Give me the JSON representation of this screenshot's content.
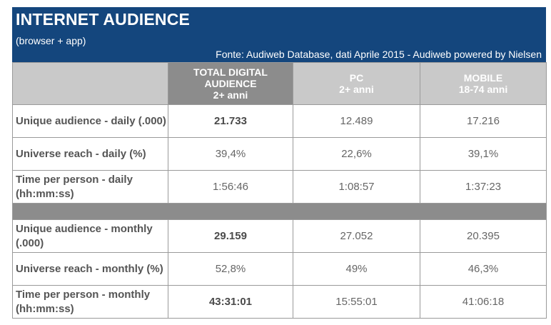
{
  "header": {
    "title": "INTERNET AUDIENCE",
    "subtitle": "(browser + app)",
    "source": "Fonte: Audiweb Database, dati Aprile 2015 - Audiweb powered by Nielsen"
  },
  "colors": {
    "header_bg": "#14467d",
    "column_header_bg": "#c9c9c9",
    "total_column_header_bg": "#8c8c8c",
    "separator_bg": "#8c8c8c"
  },
  "chart_data": {
    "type": "table",
    "title": "INTERNET AUDIENCE",
    "subtitle": "(browser + app)",
    "source": "Fonte: Audiweb Database, dati Aprile 2015 - Audiweb powered by Nielsen",
    "columns": [
      {
        "lines": [
          "TOTAL DIGITAL",
          "AUDIENCE",
          "2+ anni"
        ]
      },
      {
        "lines": [
          "PC",
          "2+ anni"
        ]
      },
      {
        "lines": [
          "MOBILE",
          "18-74 anni"
        ]
      }
    ],
    "daily_rows": [
      {
        "label": "Unique audience - daily (.000)",
        "values": [
          "21.733",
          "12.489",
          "17.216"
        ]
      },
      {
        "label": "Universe reach - daily (%)",
        "values": [
          "39,4%",
          "22,6%",
          "39,1%"
        ]
      },
      {
        "label": "Time per person - daily (hh:mm:ss)",
        "values": [
          "1:56:46",
          "1:08:57",
          "1:37:23"
        ]
      }
    ],
    "monthly_rows": [
      {
        "label": "Unique audience - monthly (.000)",
        "values": [
          "29.159",
          "27.052",
          "20.395"
        ]
      },
      {
        "label": "Universe reach - monthly (%)",
        "values": [
          "52,8%",
          "49%",
          "46,3%"
        ]
      },
      {
        "label": "Time per person - monthly (hh:mm:ss)",
        "values": [
          "43:31:01",
          "15:55:01",
          "41:06:18"
        ]
      }
    ]
  }
}
